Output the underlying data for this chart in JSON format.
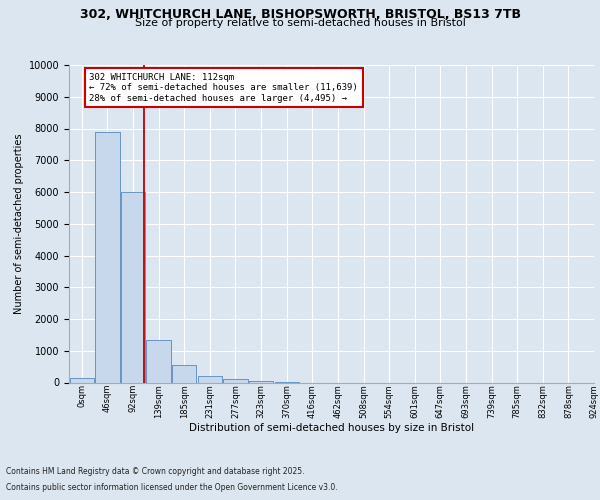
{
  "title_line1": "302, WHITCHURCH LANE, BISHOPSWORTH, BRISTOL, BS13 7TB",
  "title_line2": "Size of property relative to semi-detached houses in Bristol",
  "xlabel": "Distribution of semi-detached houses by size in Bristol",
  "ylabel": "Number of semi-detached properties",
  "bar_values": [
    150,
    7900,
    6000,
    1350,
    550,
    200,
    120,
    50,
    5,
    0,
    0,
    0,
    0,
    0,
    0,
    0,
    0,
    0,
    0,
    0
  ],
  "bin_labels": [
    "0sqm",
    "46sqm",
    "92sqm",
    "139sqm",
    "185sqm",
    "231sqm",
    "277sqm",
    "323sqm",
    "370sqm",
    "416sqm",
    "462sqm",
    "508sqm",
    "554sqm",
    "601sqm",
    "647sqm",
    "693sqm",
    "739sqm",
    "785sqm",
    "832sqm",
    "878sqm",
    "924sqm"
  ],
  "bar_color": "#c8d8ec",
  "bar_edge_color": "#5588bb",
  "vline_x": 2.42,
  "vline_color": "#bb0000",
  "annotation_title": "302 WHITCHURCH LANE: 112sqm",
  "annotation_line1": "← 72% of semi-detached houses are smaller (11,639)",
  "annotation_line2": "28% of semi-detached houses are larger (4,495) →",
  "annotation_box_color": "#cc0000",
  "ylim": [
    0,
    10000
  ],
  "yticks": [
    0,
    1000,
    2000,
    3000,
    4000,
    5000,
    6000,
    7000,
    8000,
    9000,
    10000
  ],
  "footer_line1": "Contains HM Land Registry data © Crown copyright and database right 2025.",
  "footer_line2": "Contains public sector information licensed under the Open Government Licence v3.0.",
  "bg_color": "#dce6f0",
  "plot_bg_color": "#dce6f0",
  "grid_color": "#ffffff",
  "title_fontsize": 9,
  "subtitle_fontsize": 8,
  "ylabel_fontsize": 7,
  "xlabel_fontsize": 7.5,
  "ytick_fontsize": 7,
  "xtick_fontsize": 6,
  "annotation_fontsize": 6.5,
  "footer_fontsize": 5.5
}
